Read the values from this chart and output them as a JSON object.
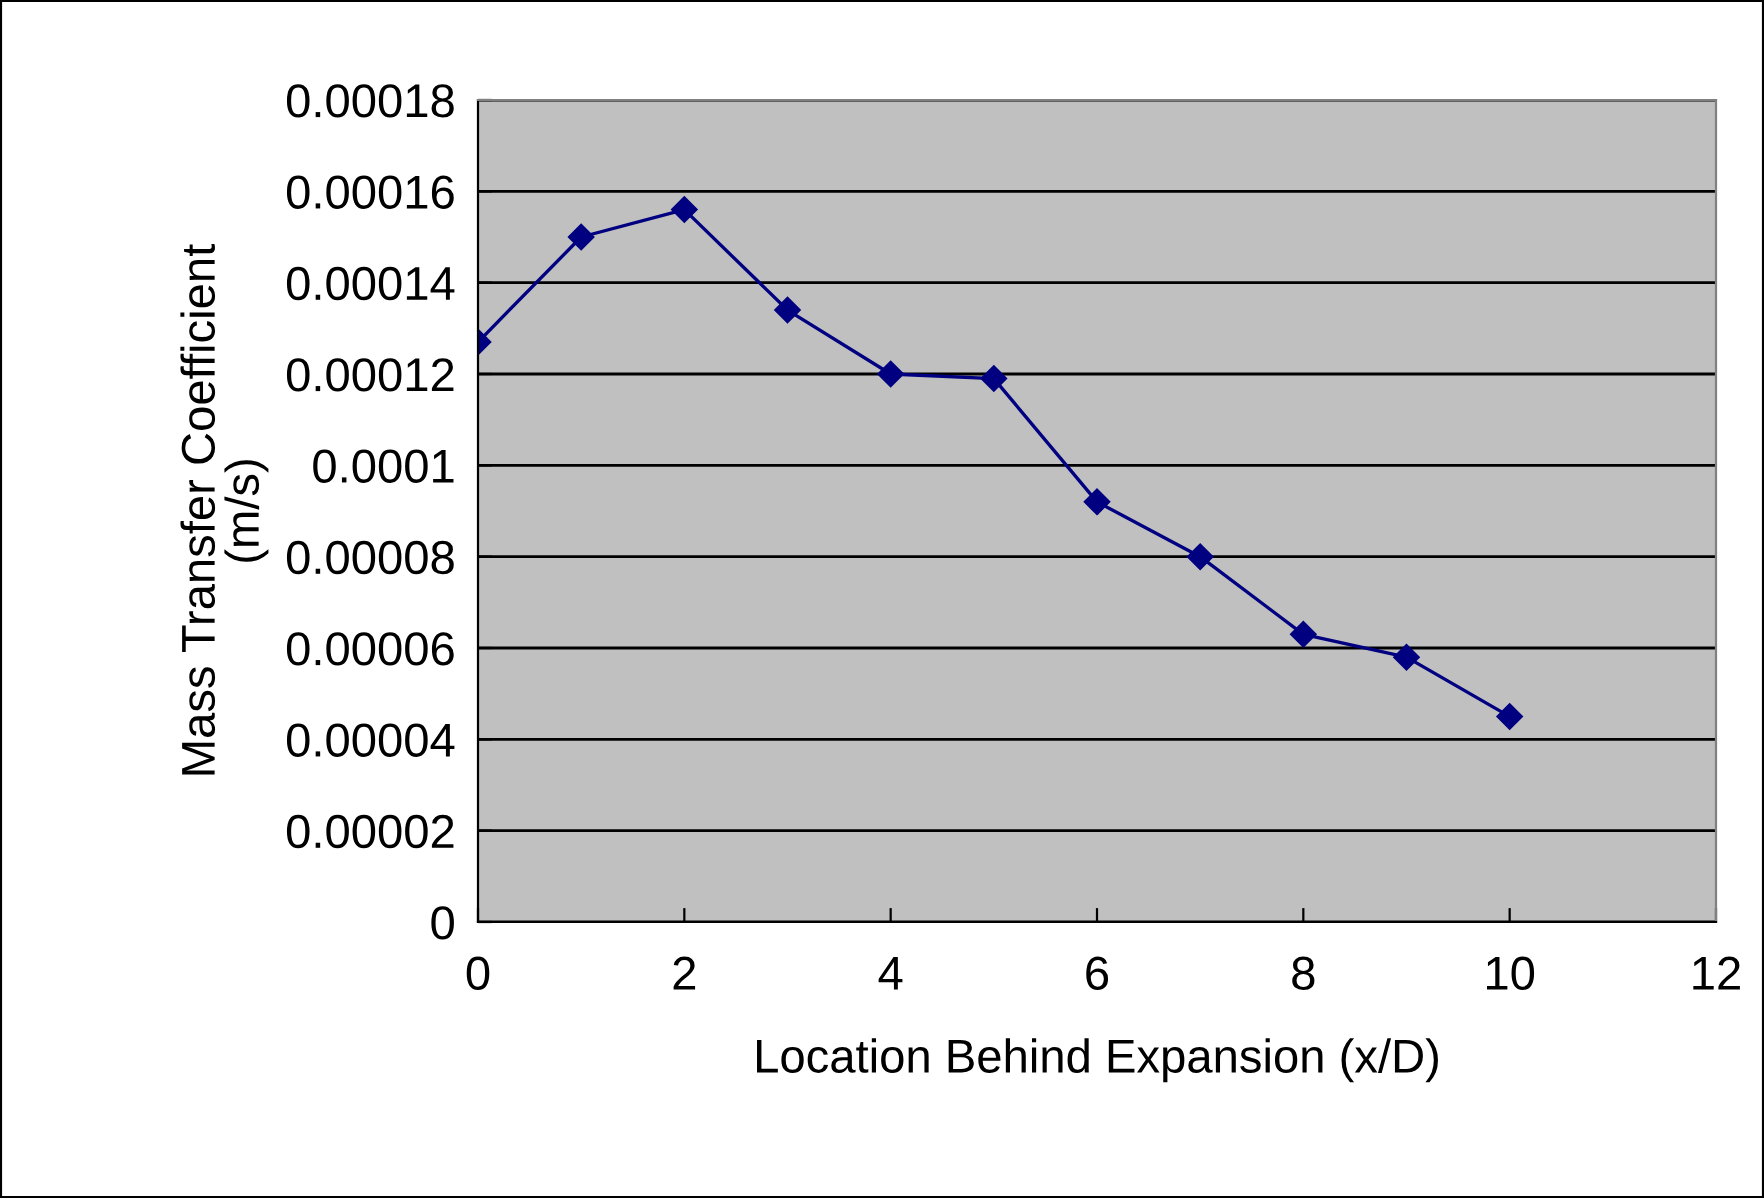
{
  "chart_data": {
    "type": "line",
    "xlabel": "Location Behind Expansion (x/D)",
    "ylabel": "Mass Transfer Coefficient\n(m/s)",
    "x": [
      0,
      1,
      2,
      3,
      4,
      5,
      6,
      7,
      8,
      9,
      10
    ],
    "series": [
      {
        "color": "#000080",
        "values": [
          0.000127,
          0.00015,
          0.000156,
          0.000134,
          0.00012,
          0.000119,
          9.2e-05,
          8e-05,
          6.3e-05,
          5.8e-05,
          4.5e-05
        ]
      }
    ],
    "marker": "diamond",
    "line_style": "solid",
    "grid": "y",
    "legend": false,
    "xlim": [
      0,
      12
    ],
    "xticks": [
      0,
      2,
      4,
      6,
      8,
      10,
      12
    ],
    "ylim": [
      0,
      0.00018
    ],
    "yticks": [
      {
        "value": 0,
        "label": "0"
      },
      {
        "value": 2e-05,
        "label": "0.00002"
      },
      {
        "value": 4e-05,
        "label": "0.00004"
      },
      {
        "value": 6e-05,
        "label": "0.00006"
      },
      {
        "value": 8e-05,
        "label": "0.00008"
      },
      {
        "value": 0.0001,
        "label": "0.0001"
      },
      {
        "value": 0.00012,
        "label": "0.00012"
      },
      {
        "value": 0.00014,
        "label": "0.00014"
      },
      {
        "value": 0.00016,
        "label": "0.00016"
      },
      {
        "value": 0.00018,
        "label": "0.00018"
      }
    ]
  }
}
